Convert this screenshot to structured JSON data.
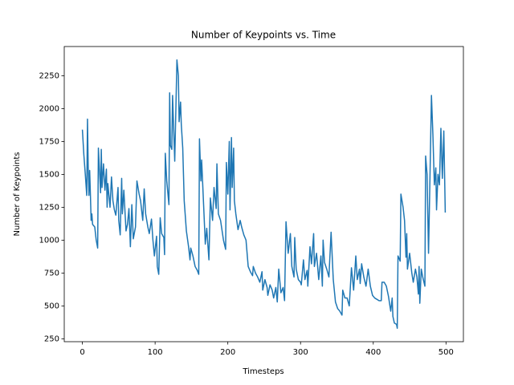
{
  "chart_data": {
    "type": "line",
    "title": "Number of Keypoints vs. Time",
    "x_label": "Timesteps",
    "y_label": "Number of Keypoints",
    "color": "#1f77b4",
    "grid": false,
    "xlim": [
      -24.95,
      523.95
    ],
    "xticks": [
      0,
      100,
      200,
      300,
      400,
      500
    ],
    "ylim": [
      228,
      2472
    ],
    "yticks": [
      250,
      500,
      750,
      1000,
      1250,
      1500,
      1750,
      2000,
      2250
    ],
    "x": [
      0,
      2,
      4,
      6,
      7,
      8,
      9,
      10,
      11,
      12,
      13,
      14,
      17,
      19,
      21,
      22,
      25,
      26,
      27,
      29,
      31,
      33,
      34,
      35,
      38,
      40,
      42,
      44,
      46,
      49,
      50,
      52,
      54,
      55,
      57,
      60,
      62,
      64,
      66,
      68,
      70,
      73,
      75,
      78,
      80,
      83,
      85,
      87,
      90,
      92,
      95,
      97,
      99,
      102,
      103,
      105,
      107,
      109,
      112,
      113,
      114,
      116,
      119,
      120,
      121,
      123,
      124,
      127,
      130,
      132,
      133,
      135,
      136,
      138,
      139,
      140,
      143,
      146,
      148,
      149,
      152,
      155,
      158,
      160,
      161,
      163,
      164,
      168,
      169,
      171,
      174,
      176,
      179,
      181,
      184,
      185,
      187,
      190,
      194,
      197,
      198,
      200,
      202,
      203,
      205,
      206,
      208,
      209,
      211,
      214,
      217,
      219,
      222,
      225,
      228,
      231,
      234,
      235,
      238,
      241,
      244,
      247,
      248,
      251,
      254,
      255,
      258,
      261,
      263,
      266,
      268,
      270,
      273,
      276,
      278,
      280,
      283,
      286,
      288,
      291,
      292,
      294,
      297,
      300,
      301,
      304,
      306,
      309,
      310,
      313,
      315,
      318,
      319,
      322,
      325,
      328,
      330,
      331,
      333,
      336,
      339,
      342,
      345,
      348,
      351,
      354,
      357,
      358,
      361,
      364,
      367,
      370,
      373,
      376,
      378,
      381,
      382,
      384,
      387,
      390,
      393,
      396,
      399,
      402,
      405,
      408,
      411,
      412,
      415,
      418,
      421,
      424,
      426,
      427,
      429,
      432,
      433,
      434,
      437,
      438,
      441,
      443,
      445,
      446,
      447,
      450,
      453,
      455,
      458,
      460,
      462,
      463,
      464,
      466,
      468,
      471,
      472,
      474,
      476,
      478,
      480,
      482,
      484,
      486,
      487,
      489,
      491,
      493,
      495,
      497,
      499
    ],
    "values": [
      1840,
      1650,
      1500,
      1340,
      1920,
      1550,
      1340,
      1530,
      1350,
      1150,
      1200,
      1120,
      1100,
      1000,
      940,
      1700,
      1360,
      1690,
      1400,
      1580,
      1380,
      1540,
      1250,
      1430,
      1250,
      1480,
      1300,
      1230,
      1190,
      1400,
      1150,
      1040,
      1470,
      1200,
      1380,
      1070,
      1120,
      1240,
      950,
      1270,
      1010,
      1100,
      1450,
      1350,
      1300,
      1150,
      1390,
      1200,
      1100,
      1050,
      1160,
      1000,
      880,
      1030,
      800,
      740,
      1170,
      1050,
      1020,
      890,
      1660,
      1450,
      1270,
      2120,
      1720,
      1690,
      2100,
      1600,
      2370,
      2250,
      1900,
      2050,
      1880,
      1700,
      1500,
      1300,
      1070,
      950,
      850,
      940,
      880,
      800,
      770,
      740,
      1770,
      1450,
      1610,
      1100,
      970,
      1090,
      850,
      1320,
      1150,
      1400,
      1240,
      1580,
      1200,
      1150,
      1000,
      930,
      1590,
      1350,
      1750,
      1230,
      1780,
      1400,
      1700,
      1300,
      1200,
      1080,
      1150,
      1100,
      1040,
      1000,
      800,
      760,
      730,
      800,
      750,
      720,
      680,
      760,
      620,
      700,
      640,
      580,
      660,
      620,
      560,
      640,
      530,
      780,
      600,
      640,
      540,
      1140,
      900,
      1050,
      800,
      720,
      1020,
      780,
      700,
      680,
      660,
      850,
      700,
      770,
      650,
      950,
      820,
      1050,
      800,
      900,
      700,
      880,
      650,
      1000,
      830,
      780,
      720,
      1060,
      700,
      530,
      480,
      460,
      430,
      620,
      560,
      560,
      500,
      790,
      620,
      880,
      700,
      780,
      670,
      820,
      720,
      650,
      780,
      650,
      580,
      560,
      550,
      540,
      540,
      680,
      680,
      650,
      570,
      460,
      560,
      420,
      370,
      360,
      330,
      880,
      840,
      1350,
      1250,
      1150,
      870,
      1050,
      780,
      900,
      750,
      680,
      780,
      720,
      590,
      800,
      520,
      780,
      720,
      650,
      1640,
      1500,
      900,
      1480,
      2100,
      1800,
      1420,
      1550,
      1230,
      1500,
      1420,
      1850,
      1470,
      1830,
      1210
    ]
  }
}
